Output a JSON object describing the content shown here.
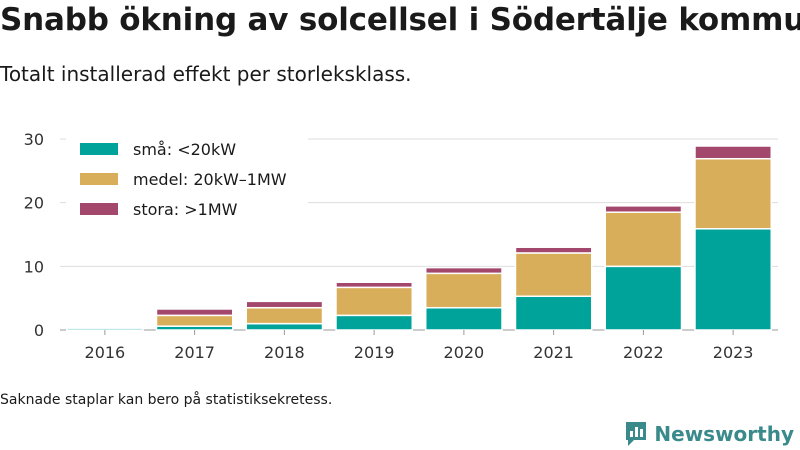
{
  "title": "Snabb ökning av solcellsel i Södertälje kommun",
  "subtitle": "Totalt installerad effekt per storleksklass.",
  "footnote": "Saknade staplar kan bero på statistiksekretess.",
  "brand": {
    "name": "Newsworthy",
    "icon": "newsworthy-logo-icon"
  },
  "colors": {
    "small": "#00a39a",
    "medium": "#d9ae5a",
    "large": "#a3486c",
    "grid": "#dddddd"
  },
  "chart_data": {
    "type": "bar",
    "stacked": true,
    "categories": [
      "2016",
      "2017",
      "2018",
      "2019",
      "2020",
      "2021",
      "2022",
      "2023"
    ],
    "series": [
      {
        "name": "små: <20kW",
        "values": [
          0.3,
          0.6,
          1.0,
          2.3,
          3.5,
          5.3,
          10.0,
          15.9
        ],
        "color": "#00a39a"
      },
      {
        "name": "medel: 20kW–1MW",
        "values": [
          0.2,
          1.7,
          2.5,
          4.4,
          5.4,
          6.8,
          8.5,
          11.0
        ],
        "color": "#d9ae5a"
      },
      {
        "name": "stora: >1MW",
        "values": [
          0.2,
          1.0,
          1.0,
          0.8,
          0.9,
          0.9,
          1.0,
          2.0
        ],
        "color": "#a3486c"
      }
    ],
    "yticks": [
      0,
      10,
      20,
      30
    ],
    "ylim": [
      0,
      30
    ],
    "grid": true,
    "legend_position": "top-left"
  }
}
